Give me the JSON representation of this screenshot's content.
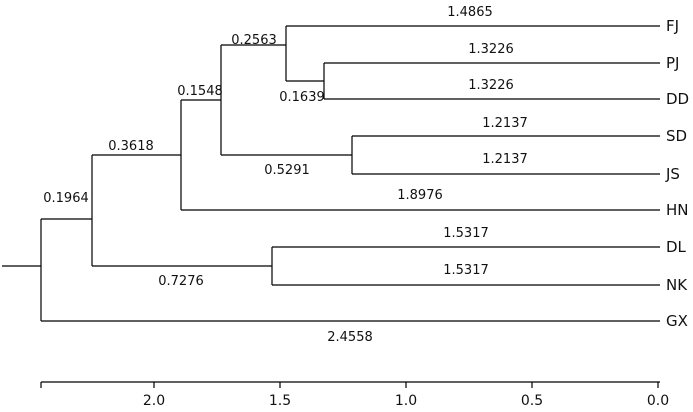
{
  "tree": {
    "taxa": [
      "FJ",
      "PJ",
      "DD",
      "SD",
      "JS",
      "HN",
      "DL",
      "NK",
      "GX"
    ],
    "branch_labels": [
      {
        "id": "fj",
        "text": "1.4865"
      },
      {
        "id": "pj",
        "text": "1.3226"
      },
      {
        "id": "dd",
        "text": "1.3226"
      },
      {
        "id": "sd",
        "text": "1.2137"
      },
      {
        "id": "js",
        "text": "1.2137"
      },
      {
        "id": "hn",
        "text": "1.8976"
      },
      {
        "id": "dl",
        "text": "1.5317"
      },
      {
        "id": "nk",
        "text": "1.5317"
      },
      {
        "id": "gx",
        "text": "2.4558"
      },
      {
        "id": "pjdd",
        "text": "0.1639"
      },
      {
        "id": "fjpjdd",
        "text": "0.2563"
      },
      {
        "id": "sdjs",
        "text": "0.5291"
      },
      {
        "id": "clade5",
        "text": "0.1548"
      },
      {
        "id": "clade6",
        "text": "0.3618"
      },
      {
        "id": "dlnk",
        "text": "0.7276"
      },
      {
        "id": "ingroup",
        "text": "0.1964"
      }
    ]
  },
  "axis": {
    "ticks": [
      "2.0",
      "1.5",
      "1.0",
      "0.5",
      "0.0"
    ]
  }
}
